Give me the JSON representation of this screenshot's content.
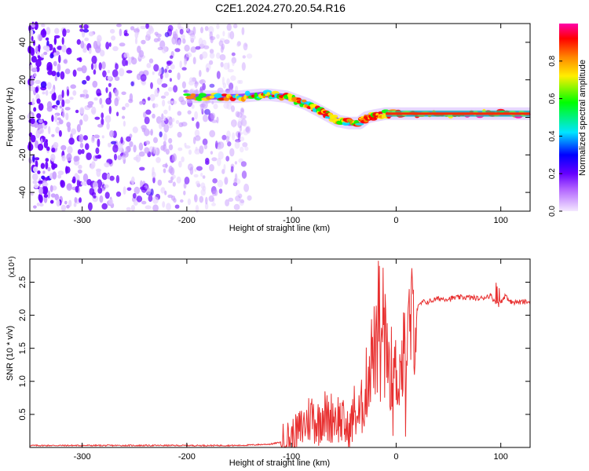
{
  "title": "C2E1.2024.270.20.54.R16",
  "chart_data": [
    {
      "type": "heatmap",
      "xlabel": "Height of straight line (km)",
      "ylabel": "Frequency (Hz)",
      "xlim": [
        -350,
        128
      ],
      "ylim": [
        -50,
        50
      ],
      "xticks": [
        "-300",
        "-200",
        "-100",
        "0",
        "100"
      ],
      "yticks": [
        "-40",
        "-20",
        "0",
        "20",
        "40"
      ],
      "colorbar": {
        "label": "Normalized spectral amplitude",
        "range": [
          0,
          1
        ],
        "ticks": [
          "0.0",
          "0.2",
          "0.4",
          "0.6",
          "0.8"
        ],
        "colors": [
          "#f4e8ff",
          "#6600ff",
          "#0000ff",
          "#00e5ff",
          "#00ff00",
          "#ffee00",
          "#ff8800",
          "#ff0000",
          "#ff00aa"
        ]
      },
      "ridge": {
        "x": [
          -200,
          -170,
          -150,
          -130,
          -120,
          -105,
          -95,
          -85,
          -75,
          -65,
          -55,
          -45,
          -35,
          -28,
          -20,
          -10,
          0,
          20,
          60,
          100,
          128
        ],
        "y": [
          11,
          11,
          11,
          12,
          12,
          11,
          9,
          7,
          4,
          1,
          -2,
          -3,
          -3,
          0,
          1,
          2,
          2,
          2,
          2,
          2,
          2
        ]
      },
      "noise_region_x": [
        -350,
        -140
      ]
    },
    {
      "type": "line",
      "xlabel": "Height of straight line (km)",
      "ylabel": "SNR (10 * v/v)",
      "y_multiplier": "(x10⁴)",
      "xlim": [
        -350,
        128
      ],
      "ylim": [
        0,
        2.85
      ],
      "xticks": [
        "-300",
        "-200",
        "-100",
        "0",
        "100"
      ],
      "yticks": [
        "0.5",
        "1.0",
        "1.5",
        "2.0",
        "2.5"
      ],
      "series": [
        {
          "color": "#e83030",
          "x": [
            -350,
            -250,
            -150,
            -120,
            -110,
            -100,
            -95,
            -90,
            -85,
            -80,
            -75,
            -70,
            -65,
            -60,
            -55,
            -50,
            -45,
            -40,
            -35,
            -30,
            -25,
            -20,
            -15,
            -10,
            -5,
            0,
            5,
            10,
            15,
            20,
            25,
            30,
            40,
            50,
            60,
            70,
            80,
            90,
            95,
            100,
            105,
            110,
            120,
            128
          ],
          "y": [
            0.03,
            0.03,
            0.03,
            0.05,
            0.08,
            0.15,
            0.2,
            0.3,
            0.4,
            0.5,
            0.35,
            0.55,
            0.4,
            0.5,
            0.45,
            0.35,
            0.2,
            0.55,
            0.45,
            0.8,
            1.3,
            1.5,
            1.2,
            1.6,
            1.2,
            1.1,
            1.2,
            1.6,
            1.9,
            2.1,
            2.2,
            2.2,
            2.25,
            2.25,
            2.27,
            2.27,
            2.25,
            2.3,
            2.2,
            2.2,
            2.3,
            2.2,
            2.2,
            2.2
          ]
        }
      ]
    }
  ]
}
